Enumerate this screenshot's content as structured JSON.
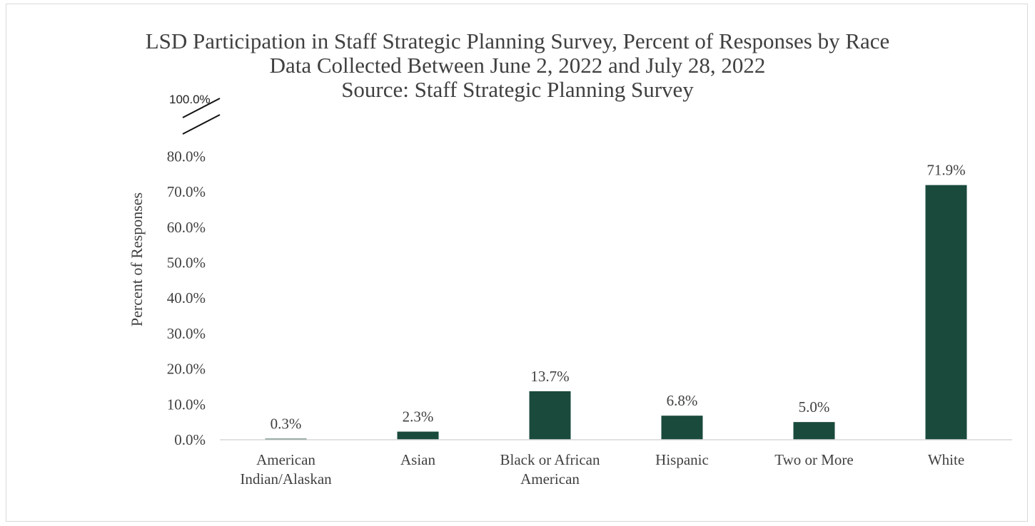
{
  "chart_data": {
    "type": "bar",
    "title": "LSD Participation in Staff Strategic Planning Survey, Percent of Responses by Race",
    "subtitle": "Data Collected Between June 2, 2022 and July 28, 2022",
    "source": "Source: Staff Strategic Planning Survey",
    "categories": [
      [
        "American",
        "Indian/Alaskan"
      ],
      [
        "Asian"
      ],
      [
        "Black or African",
        "American"
      ],
      [
        "Hispanic"
      ],
      [
        "Two or More"
      ],
      [
        "White"
      ]
    ],
    "values": [
      0.3,
      2.3,
      13.7,
      6.8,
      5.0,
      71.9
    ],
    "data_labels": [
      "0.3%",
      "2.3%",
      "13.7%",
      "6.8%",
      "5.0%",
      "71.9%"
    ],
    "ylabel": "Percent of Responses",
    "yticks": [
      "0.0%",
      "10.0%",
      "20.0%",
      "30.0%",
      "40.0%",
      "50.0%",
      "60.0%",
      "70.0%",
      "80.0%"
    ],
    "ylim": [
      0,
      80
    ],
    "axis_break_label": "100.0%",
    "grid": false,
    "legend": "none",
    "bar_color": "#1a4a3c"
  }
}
